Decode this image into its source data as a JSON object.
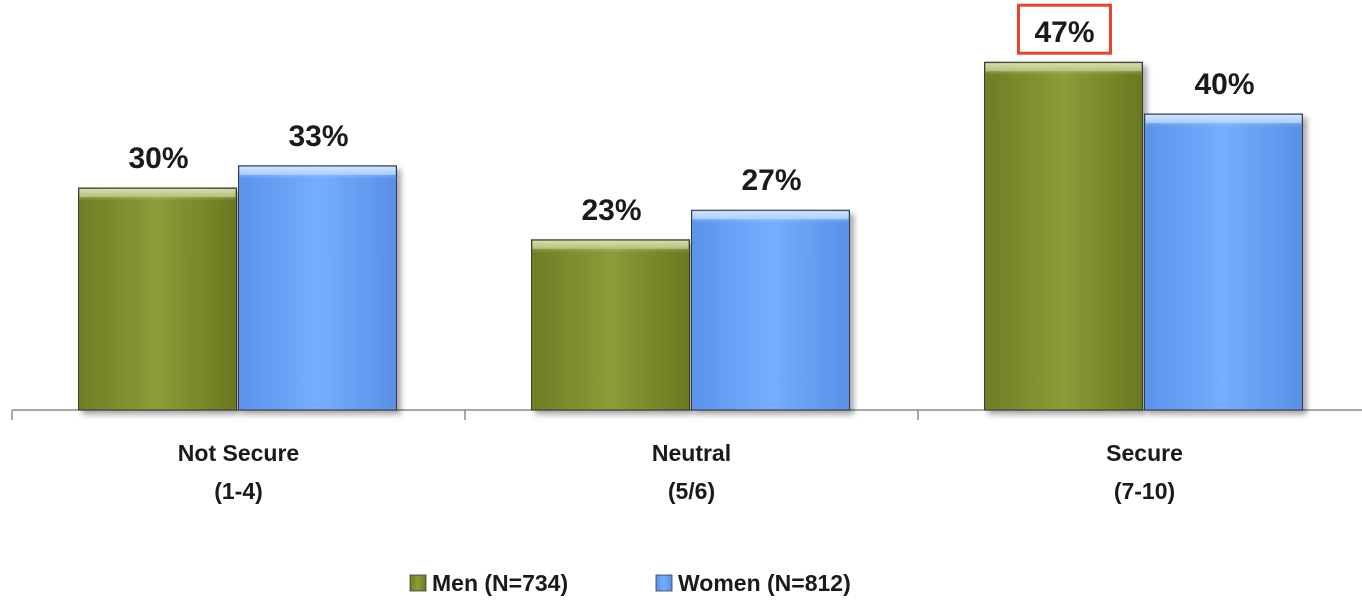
{
  "chart_data": {
    "type": "bar",
    "categories": [
      [
        "Not Secure",
        "(1-4)"
      ],
      [
        "Neutral",
        "(5/6)"
      ],
      [
        "Secure",
        "(7-10)"
      ]
    ],
    "series": [
      {
        "name": "Men (N=734)",
        "values": [
          30,
          23,
          47
        ],
        "labels": [
          "30%",
          "23%",
          "47%"
        ],
        "color": "#8a9a35"
      },
      {
        "name": "Women (N=812)",
        "values": [
          33,
          27,
          40
        ],
        "labels": [
          "33%",
          "27%",
          "40%"
        ],
        "color": "#6fa9ff"
      }
    ],
    "highlight": {
      "series": 0,
      "category": 2,
      "color": "#e8452a"
    },
    "ylim": [
      0,
      50
    ],
    "grid": false,
    "legend_position": "bottom"
  }
}
